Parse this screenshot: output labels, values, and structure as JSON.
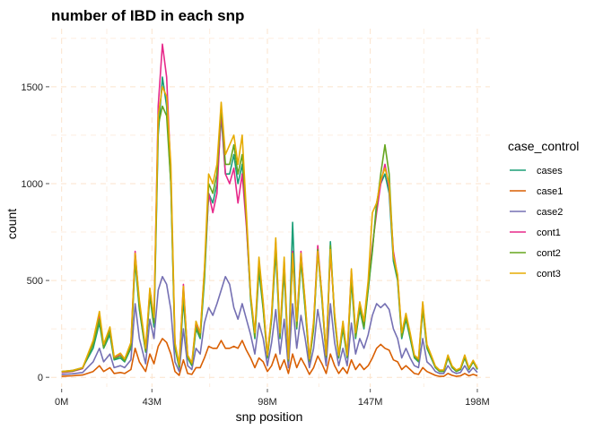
{
  "chart_data": {
    "type": "line",
    "title": "number of IBD in each snp",
    "xlabel": "snp position",
    "ylabel": "count",
    "x_tick_labels": [
      "0M",
      "43M",
      "98M",
      "147M",
      "198M"
    ],
    "x_tick_values": [
      0,
      43,
      98,
      147,
      198
    ],
    "y_tick_labels": [
      "0",
      "500",
      "1000",
      "1500"
    ],
    "y_tick_values": [
      0,
      500,
      1000,
      1500
    ],
    "xlim": [
      -5,
      204
    ],
    "ylim": [
      -50,
      1800
    ],
    "grid": true,
    "legend": {
      "title": "case_control",
      "position": "right"
    },
    "x": [
      0,
      5,
      10,
      15,
      18,
      20,
      23,
      25,
      28,
      30,
      33,
      35,
      37,
      40,
      42,
      44,
      46,
      48,
      50,
      52,
      54,
      56,
      58,
      60,
      62,
      64,
      66,
      68,
      70,
      72,
      74,
      76,
      78,
      80,
      82,
      84,
      86,
      88,
      90,
      92,
      94,
      96,
      98,
      100,
      102,
      104,
      106,
      108,
      110,
      112,
      114,
      116,
      118,
      120,
      122,
      124,
      126,
      128,
      130,
      132,
      134,
      136,
      138,
      140,
      142,
      144,
      146,
      148,
      150,
      152,
      154,
      156,
      158,
      160,
      162,
      164,
      166,
      168,
      170,
      172,
      174,
      176,
      178,
      180,
      182,
      184,
      186,
      188,
      190,
      192,
      194,
      196,
      198
    ],
    "series": [
      {
        "name": "cases",
        "color": "#1b9e77",
        "values": [
          30,
          35,
          50,
          150,
          280,
          150,
          220,
          90,
          100,
          80,
          150,
          600,
          350,
          130,
          420,
          260,
          1250,
          1550,
          1400,
          1000,
          150,
          50,
          400,
          100,
          60,
          250,
          200,
          500,
          950,
          900,
          1000,
          1350,
          1050,
          1050,
          1150,
          1000,
          1100,
          800,
          400,
          200,
          550,
          350,
          100,
          300,
          650,
          200,
          550,
          80,
          800,
          250,
          600,
          350,
          80,
          250,
          650,
          400,
          100,
          700,
          300,
          100,
          250,
          100,
          500,
          200,
          350,
          250,
          450,
          650,
          900,
          1000,
          1050,
          950,
          600,
          500,
          200,
          300,
          200,
          100,
          80,
          350,
          150,
          100,
          50,
          30,
          30,
          100,
          50,
          30,
          40,
          100,
          40,
          80,
          40
        ]
      },
      {
        "name": "case1",
        "color": "#d95f02",
        "values": [
          5,
          8,
          12,
          30,
          60,
          30,
          50,
          20,
          25,
          20,
          40,
          150,
          80,
          30,
          120,
          70,
          160,
          200,
          180,
          120,
          30,
          10,
          90,
          20,
          15,
          50,
          50,
          100,
          160,
          150,
          150,
          190,
          150,
          150,
          160,
          150,
          190,
          140,
          100,
          50,
          100,
          80,
          30,
          60,
          120,
          40,
          90,
          20,
          120,
          50,
          100,
          60,
          15,
          50,
          110,
          70,
          20,
          120,
          60,
          20,
          50,
          20,
          90,
          40,
          70,
          40,
          60,
          100,
          150,
          170,
          150,
          140,
          90,
          80,
          40,
          60,
          40,
          20,
          15,
          50,
          30,
          20,
          10,
          5,
          5,
          20,
          10,
          5,
          8,
          20,
          8,
          15,
          8
        ]
      },
      {
        "name": "case2",
        "color": "#7570b3",
        "values": [
          15,
          18,
          25,
          80,
          150,
          80,
          120,
          50,
          60,
          50,
          90,
          380,
          200,
          70,
          300,
          200,
          450,
          520,
          480,
          350,
          80,
          30,
          250,
          60,
          40,
          150,
          120,
          280,
          360,
          320,
          380,
          450,
          520,
          480,
          360,
          300,
          380,
          300,
          220,
          120,
          280,
          200,
          60,
          180,
          350,
          120,
          300,
          50,
          380,
          150,
          320,
          200,
          50,
          150,
          350,
          220,
          60,
          380,
          180,
          60,
          150,
          60,
          280,
          120,
          200,
          150,
          220,
          320,
          380,
          360,
          380,
          350,
          250,
          200,
          100,
          150,
          100,
          60,
          50,
          200,
          80,
          60,
          30,
          20,
          20,
          60,
          30,
          20,
          25,
          60,
          25,
          50,
          25
        ]
      },
      {
        "name": "cont1",
        "color": "#e7298a",
        "values": [
          25,
          30,
          45,
          180,
          320,
          160,
          250,
          100,
          120,
          90,
          170,
          650,
          380,
          140,
          450,
          300,
          1400,
          1720,
          1550,
          1050,
          170,
          60,
          480,
          110,
          70,
          280,
          220,
          550,
          950,
          850,
          950,
          1380,
          1050,
          1000,
          1080,
          900,
          1050,
          780,
          420,
          220,
          600,
          380,
          110,
          320,
          700,
          220,
          600,
          90,
          650,
          280,
          650,
          380,
          90,
          280,
          680,
          420,
          110,
          650,
          320,
          110,
          280,
          110,
          550,
          220,
          380,
          280,
          480,
          680,
          850,
          1000,
          1100,
          980,
          650,
          520,
          220,
          320,
          220,
          110,
          90,
          380,
          160,
          110,
          55,
          35,
          35,
          110,
          55,
          35,
          45,
          110,
          45,
          85,
          45
        ]
      },
      {
        "name": "cont2",
        "color": "#66a61e",
        "values": [
          28,
          32,
          48,
          170,
          300,
          155,
          240,
          95,
          110,
          85,
          160,
          620,
          360,
          135,
          430,
          280,
          1300,
          1400,
          1350,
          1000,
          160,
          55,
          450,
          105,
          65,
          260,
          210,
          520,
          1000,
          950,
          1050,
          1400,
          1100,
          1100,
          1200,
          1050,
          1150,
          820,
          410,
          210,
          580,
          360,
          105,
          310,
          680,
          210,
          580,
          85,
          620,
          260,
          620,
          360,
          85,
          260,
          660,
          410,
          105,
          680,
          310,
          105,
          260,
          105,
          520,
          210,
          360,
          260,
          460,
          660,
          880,
          1050,
          1200,
          1050,
          620,
          510,
          210,
          310,
          210,
          105,
          85,
          360,
          155,
          105,
          52,
          32,
          32,
          105,
          52,
          32,
          42,
          105,
          42,
          82,
          42
        ]
      },
      {
        "name": "cont3",
        "color": "#e6ab02",
        "values": [
          30,
          35,
          50,
          190,
          340,
          170,
          260,
          105,
          125,
          95,
          180,
          640,
          400,
          150,
          460,
          310,
          1350,
          1500,
          1450,
          1100,
          180,
          65,
          470,
          115,
          75,
          290,
          230,
          560,
          1050,
          1000,
          1100,
          1420,
          1150,
          1200,
          1250,
          1100,
          1250,
          850,
          430,
          230,
          620,
          390,
          115,
          330,
          720,
          230,
          620,
          95,
          640,
          290,
          640,
          390,
          95,
          290,
          650,
          430,
          115,
          660,
          330,
          115,
          290,
          115,
          560,
          230,
          390,
          290,
          500,
          850,
          900,
          1020,
          1080,
          1000,
          630,
          530,
          230,
          330,
          230,
          115,
          95,
          390,
          170,
          115,
          58,
          38,
          38,
          115,
          58,
          38,
          48,
          115,
          48,
          88,
          48
        ]
      }
    ]
  }
}
